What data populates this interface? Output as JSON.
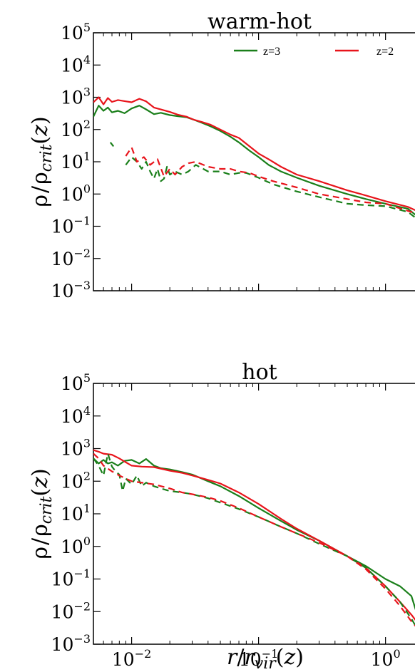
{
  "xlabel": "r/r_vir(z)",
  "legend": {
    "placement": "top-right",
    "entries": [
      "z=3",
      "z=2"
    ]
  },
  "colors": {
    "z3": "#1a7f1a",
    "z2": "#e8141b"
  },
  "chart_data": [
    {
      "type": "line",
      "title": "warm-hot",
      "ylabel": "ρ/ρ_crit(z)",
      "xscale": "log",
      "yscale": "log",
      "xlim": [
        0.005,
        2.1
      ],
      "ylim": [
        0.001,
        100000
      ],
      "xticks": [
        "10^-2",
        "10^-1",
        "10^0"
      ],
      "yticks": [
        "10^-3",
        "10^-2",
        "10^-1",
        "10^0",
        "10^1",
        "10^2",
        "10^3",
        "10^4",
        "10^5"
      ],
      "series": [
        {
          "name": "z=3",
          "style": "solid",
          "color": "#1a7f1a",
          "x": [
            0.005,
            0.0055,
            0.006,
            0.0065,
            0.007,
            0.0078,
            0.0088,
            0.01,
            0.0115,
            0.013,
            0.015,
            0.017,
            0.02,
            0.023,
            0.027,
            0.031,
            0.036,
            0.042,
            0.05,
            0.06,
            0.07,
            0.085,
            0.1,
            0.12,
            0.15,
            0.2,
            0.3,
            0.5,
            0.7,
            1.0,
            1.5,
            2.1
          ],
          "y": [
            250,
            550,
            380,
            480,
            340,
            380,
            320,
            450,
            550,
            420,
            300,
            330,
            280,
            260,
            240,
            200,
            160,
            125,
            90,
            60,
            40,
            22,
            14,
            8,
            5,
            3.2,
            1.8,
            1.0,
            0.7,
            0.5,
            0.35,
            0.12
          ]
        },
        {
          "name": "z=2",
          "style": "solid",
          "color": "#e8141b",
          "x": [
            0.005,
            0.0055,
            0.006,
            0.0065,
            0.007,
            0.0078,
            0.0088,
            0.01,
            0.0115,
            0.013,
            0.015,
            0.017,
            0.02,
            0.023,
            0.027,
            0.031,
            0.036,
            0.042,
            0.05,
            0.06,
            0.07,
            0.085,
            0.1,
            0.12,
            0.15,
            0.2,
            0.3,
            0.5,
            0.7,
            1.0,
            1.5,
            2.1
          ],
          "y": [
            700,
            1000,
            600,
            950,
            720,
            820,
            760,
            700,
            900,
            750,
            480,
            420,
            350,
            290,
            250,
            200,
            170,
            140,
            100,
            70,
            55,
            30,
            18,
            12,
            7,
            4,
            2.5,
            1.3,
            0.9,
            0.6,
            0.4,
            0.22
          ]
        },
        {
          "name": "z=3",
          "style": "dashed",
          "color": "#1a7f1a",
          "x": [
            0.0068,
            0.0072,
            0.0078,
            0.0085,
            0.009,
            0.01,
            0.011,
            0.012,
            0.013,
            0.014,
            0.015,
            0.016,
            0.017,
            0.018,
            0.019,
            0.02,
            0.022,
            0.025,
            0.028,
            0.032,
            0.04,
            0.05,
            0.06,
            0.07,
            0.08,
            0.1,
            0.13,
            0.2,
            0.3,
            0.5,
            0.7,
            1.0,
            1.5,
            2.1
          ],
          "y": [
            40,
            30,
            null,
            null,
            8,
            14,
            10,
            6,
            10,
            5,
            3,
            6,
            2.5,
            3,
            7,
            4,
            5,
            4,
            5,
            8,
            5,
            5,
            4,
            4.5,
            4.5,
            3.2,
            2,
            1.2,
            0.8,
            0.5,
            0.45,
            0.42,
            0.28,
            0.1
          ]
        },
        {
          "name": "z=2",
          "style": "dashed",
          "color": "#e8141b",
          "x": [
            0.009,
            0.01,
            0.011,
            0.0125,
            0.014,
            0.016,
            0.018,
            0.02,
            0.022,
            0.025,
            0.028,
            0.032,
            0.04,
            0.05,
            0.06,
            0.07,
            0.085,
            0.1,
            0.13,
            0.2,
            0.3,
            0.5,
            0.7,
            1.0,
            1.5,
            2.1
          ],
          "y": [
            15,
            28,
            10,
            14,
            8,
            12,
            3.5,
            6,
            4,
            7,
            9,
            10,
            7,
            6,
            6,
            5,
            4.5,
            3.5,
            2.5,
            1.6,
            1.0,
            0.7,
            0.55,
            0.5,
            0.3,
            0.2
          ]
        }
      ]
    },
    {
      "type": "line",
      "title": "hot",
      "ylabel": "ρ/ρ_crit(z)",
      "xscale": "log",
      "yscale": "log",
      "xlim": [
        0.005,
        2.1
      ],
      "ylim": [
        0.001,
        100000
      ],
      "xticks": [
        "10^-2",
        "10^-1",
        "10^0"
      ],
      "yticks": [
        "10^-3",
        "10^-2",
        "10^-1",
        "10^0",
        "10^1",
        "10^2",
        "10^3",
        "10^4",
        "10^5"
      ],
      "series": [
        {
          "name": "z=3",
          "style": "solid",
          "color": "#1a7f1a",
          "x": [
            0.005,
            0.0055,
            0.006,
            0.0065,
            0.007,
            0.0078,
            0.0088,
            0.01,
            0.0115,
            0.013,
            0.015,
            0.017,
            0.02,
            0.025,
            0.03,
            0.04,
            0.05,
            0.07,
            0.1,
            0.15,
            0.2,
            0.3,
            0.5,
            0.7,
            1.0,
            1.3,
            1.6,
            2.1
          ],
          "y": [
            500,
            350,
            450,
            350,
            380,
            300,
            420,
            450,
            350,
            480,
            300,
            250,
            230,
            190,
            160,
            100,
            70,
            35,
            15,
            6,
            3.2,
            1.5,
            0.5,
            0.25,
            0.1,
            0.06,
            0.03,
            0.001
          ]
        },
        {
          "name": "z=2",
          "style": "solid",
          "color": "#e8141b",
          "x": [
            0.005,
            0.0055,
            0.006,
            0.007,
            0.008,
            0.009,
            0.01,
            0.012,
            0.015,
            0.02,
            0.025,
            0.03,
            0.04,
            0.05,
            0.07,
            0.1,
            0.15,
            0.2,
            0.3,
            0.5,
            0.7,
            1.0,
            1.3,
            1.6,
            2.1
          ],
          "y": [
            900,
            800,
            700,
            650,
            500,
            380,
            300,
            280,
            270,
            210,
            180,
            150,
            110,
            85,
            45,
            20,
            7,
            3.5,
            1.5,
            0.5,
            0.22,
            0.06,
            0.02,
            0.008,
            0.002
          ]
        },
        {
          "name": "z=3",
          "style": "dashed",
          "color": "#1a7f1a",
          "x": [
            0.005,
            0.0055,
            0.006,
            0.0065,
            0.007,
            0.0075,
            0.008,
            0.0085,
            0.009,
            0.01,
            0.011,
            0.012,
            0.013,
            0.015,
            0.017,
            0.02,
            0.025,
            0.03,
            0.04,
            0.05,
            0.07,
            0.1,
            0.15,
            0.2,
            0.3,
            0.5,
            0.7,
            1.0,
            1.3,
            1.6,
            2.1
          ],
          "y": [
            500,
            300,
            150,
            700,
            280,
            200,
            160,
            50,
            120,
            80,
            150,
            70,
            90,
            70,
            60,
            50,
            45,
            40,
            30,
            22,
            14,
            8,
            4,
            2.5,
            1.2,
            0.5,
            0.22,
            0.06,
            0.02,
            0.006,
            0.001
          ]
        },
        {
          "name": "z=2",
          "style": "dashed",
          "color": "#e8141b",
          "x": [
            0.005,
            0.0055,
            0.006,
            0.007,
            0.008,
            0.009,
            0.01,
            0.012,
            0.015,
            0.02,
            0.025,
            0.03,
            0.04,
            0.05,
            0.07,
            0.1,
            0.15,
            0.2,
            0.3,
            0.5,
            0.7,
            1.0,
            1.3,
            1.6,
            2.1
          ],
          "y": [
            700,
            500,
            300,
            200,
            150,
            120,
            100,
            90,
            80,
            60,
            45,
            40,
            32,
            25,
            15,
            8,
            4,
            2.5,
            1.3,
            0.5,
            0.2,
            0.05,
            0.015,
            0.005,
            0.0015
          ]
        }
      ]
    }
  ]
}
